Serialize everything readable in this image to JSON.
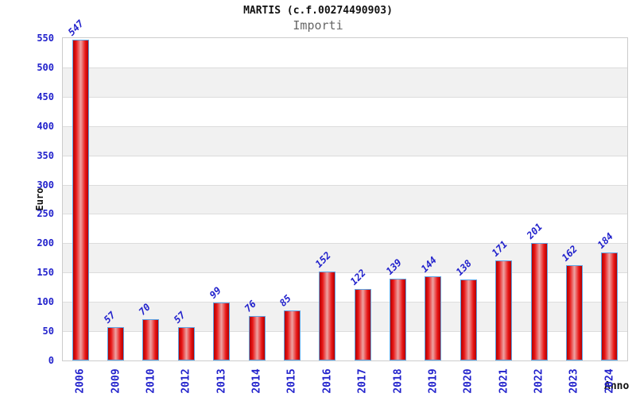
{
  "header": {
    "title": "MARTIS (c.f.00274490903)",
    "subtitle": "Importi"
  },
  "chart_data": {
    "type": "bar",
    "title": "MARTIS (c.f.00274490903)",
    "subtitle": "Importi",
    "xlabel": "Anno",
    "ylabel": "Euro",
    "categories": [
      "2006",
      "2009",
      "2010",
      "2012",
      "2013",
      "2014",
      "2015",
      "2016",
      "2017",
      "2018",
      "2019",
      "2020",
      "2021",
      "2022",
      "2023",
      "2024"
    ],
    "values": [
      547,
      57,
      70,
      57,
      99,
      76,
      85,
      152,
      122,
      139,
      144,
      138,
      171,
      201,
      162,
      184
    ],
    "ylim": [
      0,
      550
    ],
    "yticks": [
      0,
      50,
      100,
      150,
      200,
      250,
      300,
      350,
      400,
      450,
      500,
      550
    ],
    "grid": "horizontal-bands",
    "legend": "none",
    "colors": {
      "tick_label_blue": "#2222cc",
      "value_label_blue": "#2222cc",
      "bar_border_blue": "#5ea4e4",
      "bar_red_dark": "#b30000",
      "bar_red": "#e81717",
      "bar_red_highlight": "#eda3a3",
      "band_gray": "#f1f1f1",
      "band_white": "#ffffff",
      "gridline_gray": "#dcdcdc",
      "plot_border_gray": "#cccccc",
      "subtitle_gray": "#666666",
      "axis_title_black": "#111111"
    }
  }
}
